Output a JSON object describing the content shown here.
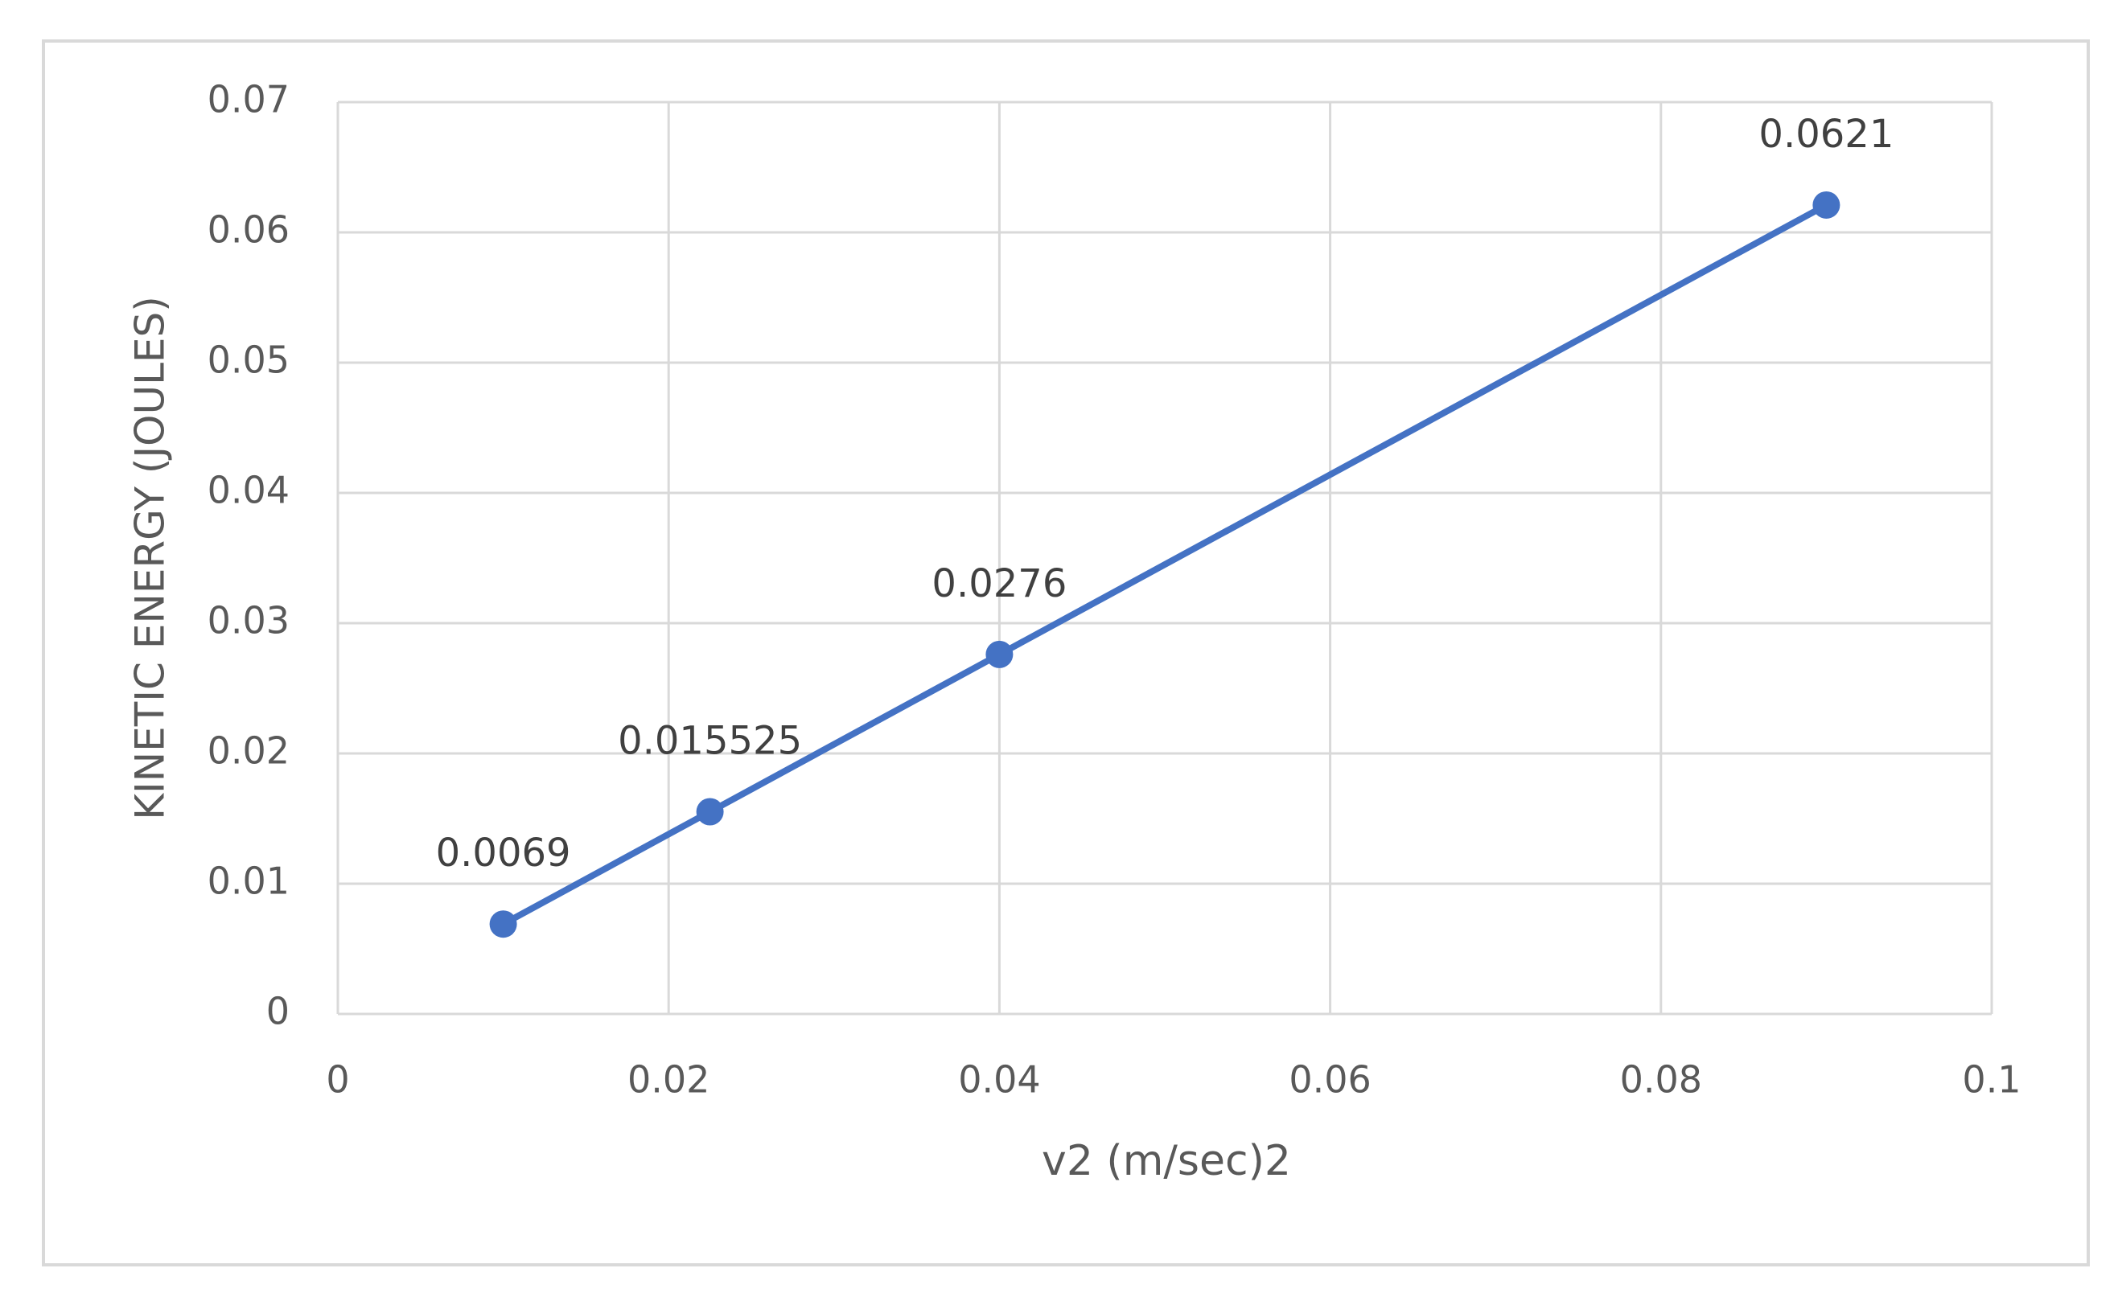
{
  "chart_data": {
    "type": "line",
    "x_label": "v2 (m/sec)2",
    "y_label": "KINETIC ENERGY (JOULES)",
    "x": [
      0.01,
      0.0225,
      0.04,
      0.09
    ],
    "values": [
      0.0069,
      0.015525,
      0.0276,
      0.0621
    ],
    "color": "#4472c4",
    "markers": true,
    "xlim": [
      0,
      0.1
    ],
    "xticks": [
      0,
      0.02,
      0.04,
      0.06,
      0.08,
      0.1
    ],
    "ylim": [
      0,
      0.07
    ],
    "yticks": [
      0,
      0.01,
      0.02,
      0.03,
      0.04,
      0.05,
      0.06,
      0.07
    ],
    "grid": true
  }
}
